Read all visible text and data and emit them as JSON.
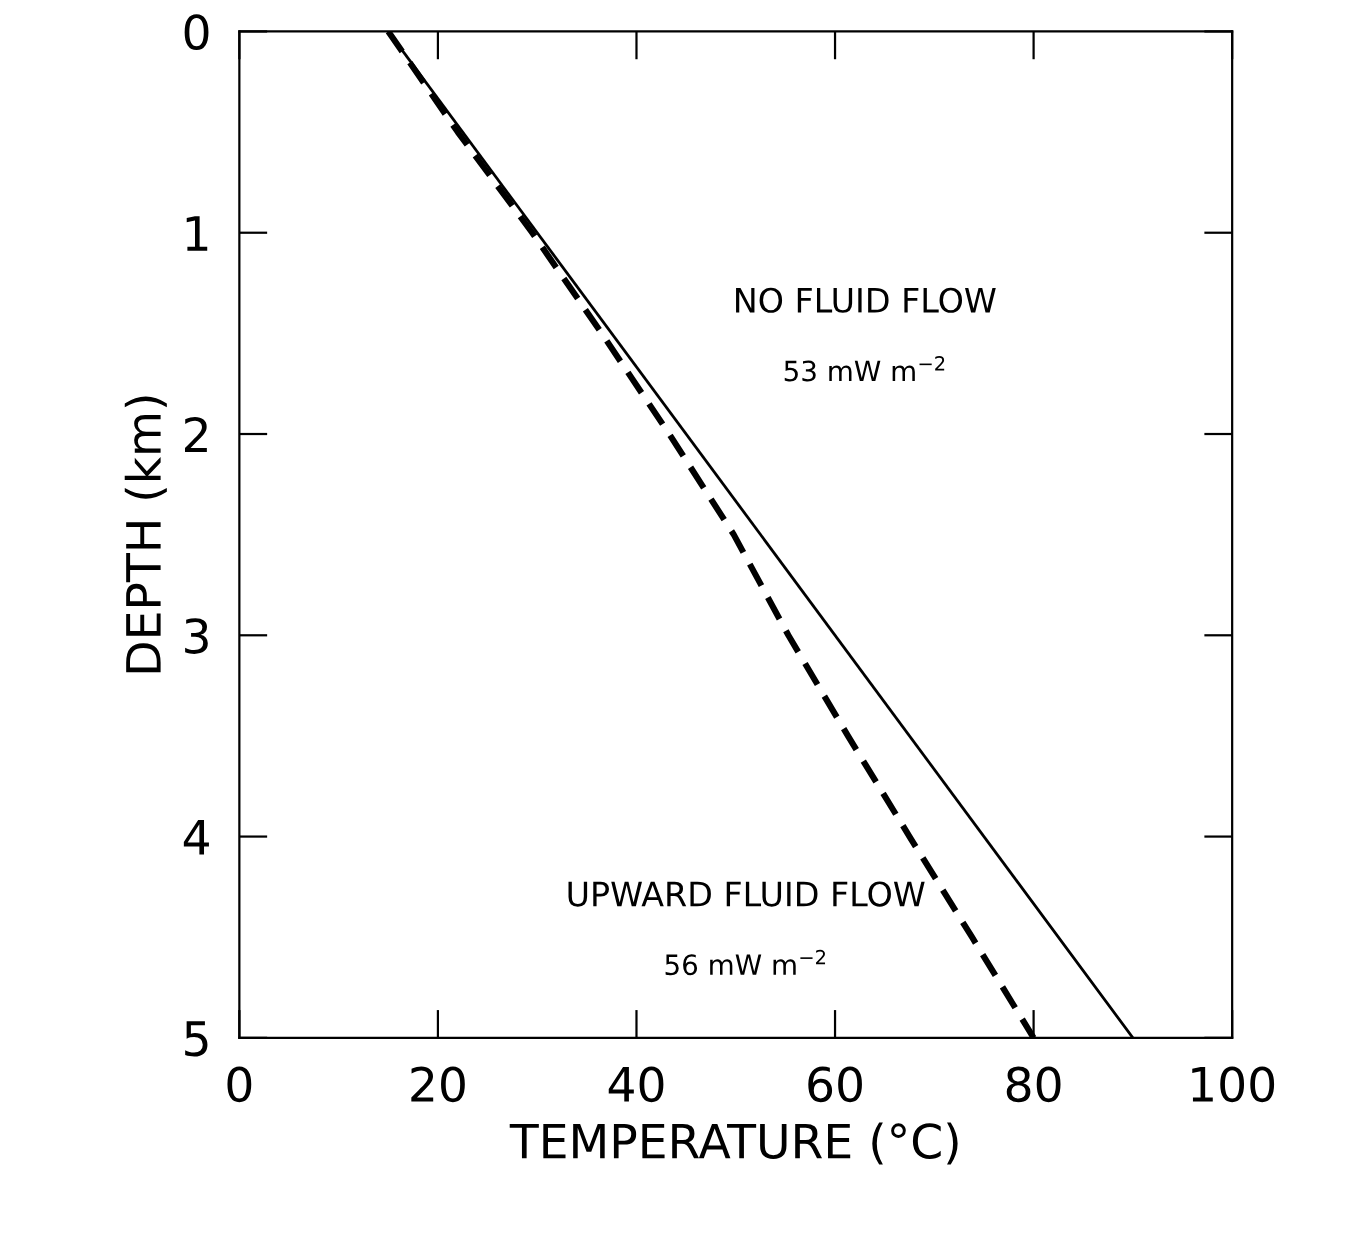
{
  "chart_data": {
    "type": "line",
    "xlabel": "TEMPERATURE (°C)",
    "ylabel": "DEPTH (km)",
    "xlim": [
      0,
      100
    ],
    "ylim": [
      5,
      0
    ],
    "xticks": [
      0,
      20,
      40,
      60,
      80,
      100
    ],
    "yticks": [
      0,
      1,
      2,
      3,
      4,
      5
    ],
    "grid": false,
    "legend": false,
    "series": [
      {
        "color": "#000000",
        "line_style": "solid",
        "x": [
          15,
          90
        ],
        "values": [
          0,
          5
        ]
      },
      {
        "color": "#000000",
        "line_style": "dashed",
        "x": [
          15,
          22,
          29.5,
          36.5,
          43.3,
          49.8,
          55.3,
          61.3,
          67.5,
          73.8,
          80
        ],
        "values": [
          0,
          0.5,
          1,
          1.5,
          2,
          2.5,
          3,
          3.5,
          4,
          4.5,
          5
        ]
      }
    ],
    "annotations": [
      "NO FLUID FLOW",
      "53 mW m$^{−2}$",
      "UPWARD FLUID FLOW",
      "56 mW m$^{−2}$"
    ]
  }
}
